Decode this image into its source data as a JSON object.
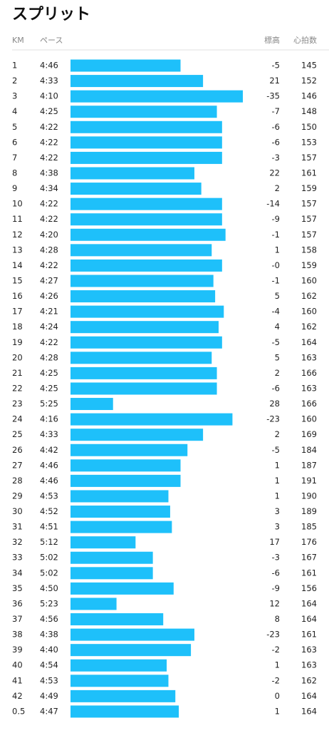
{
  "header": {
    "title": "スプリット"
  },
  "table": {
    "columns": [
      "KM",
      "ペース",
      "標高",
      "心拍数"
    ],
    "rows": [
      [
        "1",
        "4:46",
        "-5",
        "145"
      ],
      [
        "2",
        "4:33",
        "21",
        "152"
      ],
      [
        "3",
        "4:10",
        "-35",
        "146"
      ],
      [
        "4",
        "4:25",
        "-7",
        "148"
      ],
      [
        "5",
        "4:22",
        "-6",
        "150"
      ],
      [
        "6",
        "4:22",
        "-6",
        "153"
      ],
      [
        "7",
        "4:22",
        "-3",
        "157"
      ],
      [
        "8",
        "4:38",
        "22",
        "161"
      ],
      [
        "9",
        "4:34",
        "2",
        "159"
      ],
      [
        "10",
        "4:22",
        "-14",
        "157"
      ],
      [
        "11",
        "4:22",
        "-9",
        "157"
      ],
      [
        "12",
        "4:20",
        "-1",
        "157"
      ],
      [
        "13",
        "4:28",
        "1",
        "158"
      ],
      [
        "14",
        "4:22",
        "-0",
        "159"
      ],
      [
        "15",
        "4:27",
        "-1",
        "160"
      ],
      [
        "16",
        "4:26",
        "5",
        "162"
      ],
      [
        "17",
        "4:21",
        "-4",
        "160"
      ],
      [
        "18",
        "4:24",
        "4",
        "162"
      ],
      [
        "19",
        "4:22",
        "-5",
        "164"
      ],
      [
        "20",
        "4:28",
        "5",
        "163"
      ],
      [
        "21",
        "4:25",
        "2",
        "166"
      ],
      [
        "22",
        "4:25",
        "-6",
        "163"
      ],
      [
        "23",
        "5:25",
        "28",
        "166"
      ],
      [
        "24",
        "4:16",
        "-23",
        "160"
      ],
      [
        "25",
        "4:33",
        "2",
        "169"
      ],
      [
        "26",
        "4:42",
        "-5",
        "184"
      ],
      [
        "27",
        "4:46",
        "1",
        "187"
      ],
      [
        "28",
        "4:46",
        "1",
        "191"
      ],
      [
        "29",
        "4:53",
        "1",
        "190"
      ],
      [
        "30",
        "4:52",
        "3",
        "189"
      ],
      [
        "31",
        "4:51",
        "3",
        "185"
      ],
      [
        "32",
        "5:12",
        "17",
        "176"
      ],
      [
        "33",
        "5:02",
        "-3",
        "167"
      ],
      [
        "34",
        "5:02",
        "-6",
        "161"
      ],
      [
        "35",
        "4:50",
        "-9",
        "156"
      ],
      [
        "36",
        "5:23",
        "12",
        "164"
      ],
      [
        "37",
        "4:56",
        "8",
        "164"
      ],
      [
        "38",
        "4:38",
        "-23",
        "161"
      ],
      [
        "39",
        "4:40",
        "-2",
        "163"
      ],
      [
        "40",
        "4:54",
        "1",
        "163"
      ],
      [
        "41",
        "4:53",
        "-2",
        "162"
      ],
      [
        "42",
        "4:49",
        "0",
        "164"
      ],
      [
        "0.5",
        "4:47",
        "1",
        "164"
      ]
    ]
  }
}
